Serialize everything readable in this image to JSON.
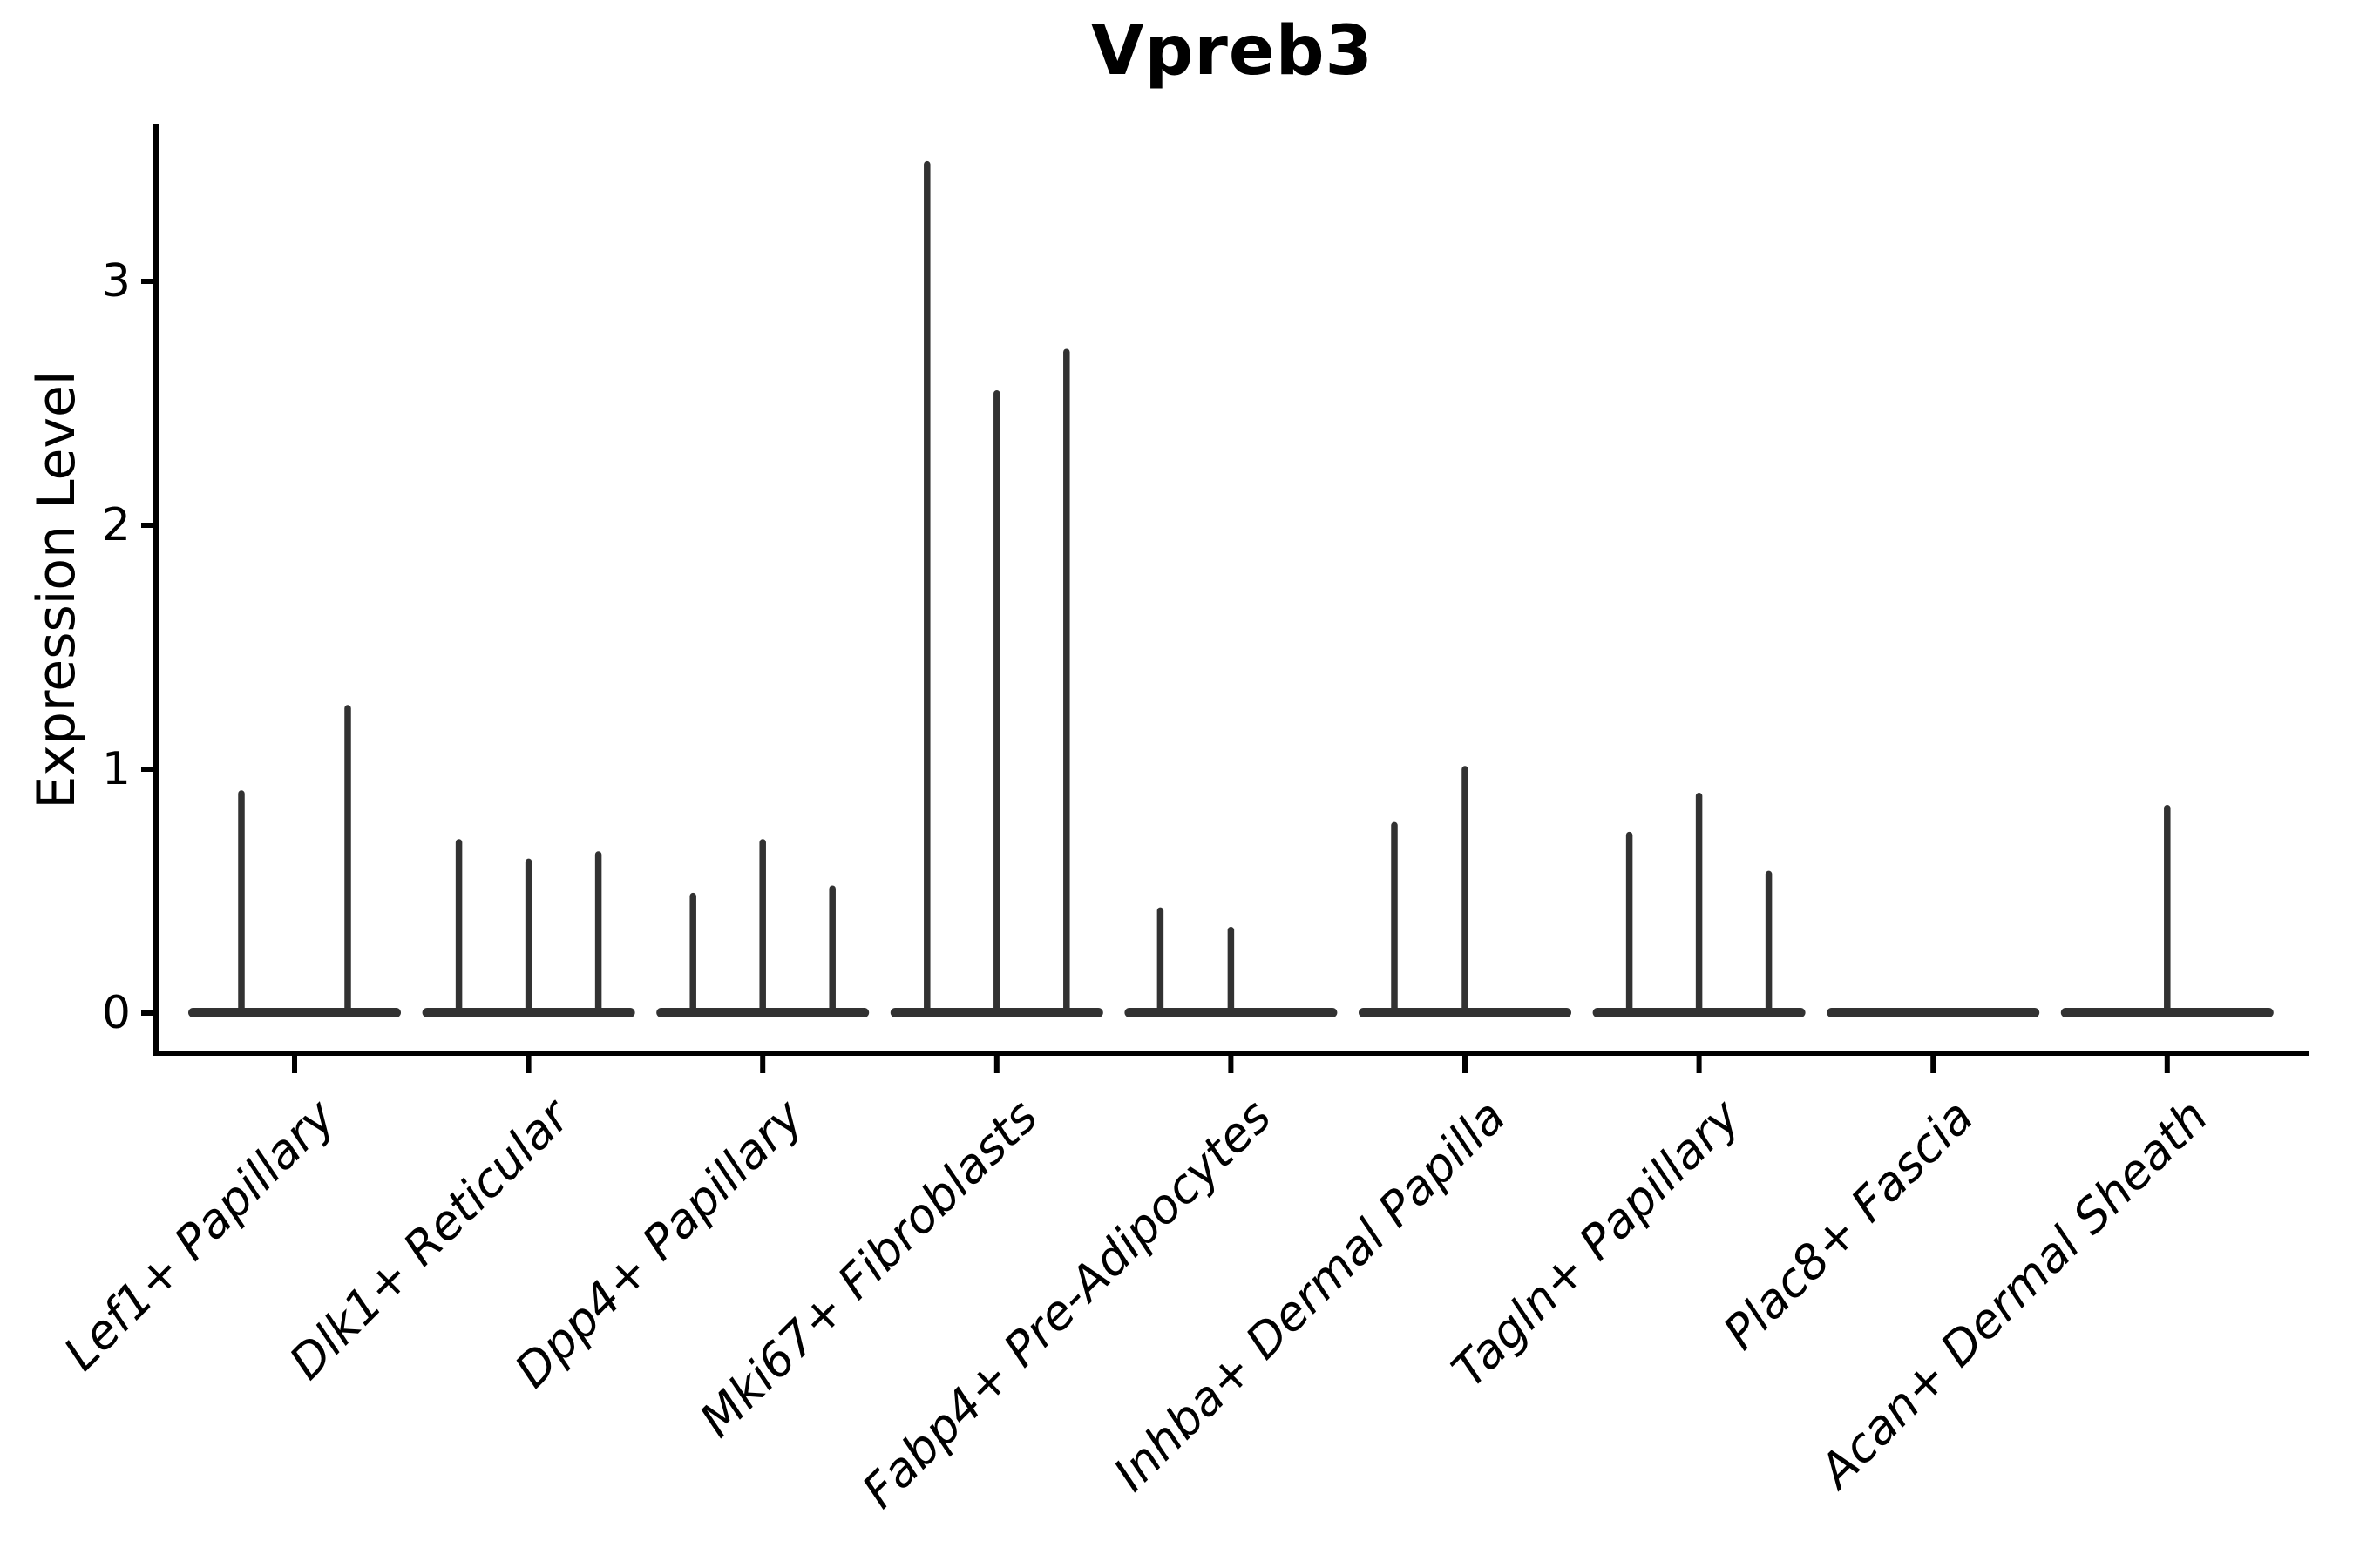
{
  "title": "Vpreb3",
  "y_axis": {
    "label": "Expression Level"
  },
  "chart_data": {
    "type": "violin",
    "title": "Vpreb3",
    "xlabel": "",
    "ylabel": "Expression Level",
    "ylim": [
      0,
      3.65
    ],
    "yticks": [
      0,
      1,
      2,
      3
    ],
    "grid": false,
    "legend": false,
    "categories": [
      "Lef1+ Papillary",
      "Dlk1+ Reticular",
      "Dpp4+ Papillary",
      "Mki67+ Fibroblasts",
      "Fabp4+ Pre-Adipocytes",
      "Inhba+ Dermal Papilla",
      "Tagln+ Papillary",
      "Plac8+ Fascia",
      "Acan+ Dermal Sheath"
    ],
    "groups": [
      {
        "category": "Lef1+ Papillary",
        "needles": [
          {
            "offset": -61,
            "value": 0.9
          },
          {
            "offset": 61,
            "value": 1.25
          }
        ]
      },
      {
        "category": "Dlk1+ Reticular",
        "needles": [
          {
            "offset": -80,
            "value": 0.7
          },
          {
            "offset": 0,
            "value": 0.62
          },
          {
            "offset": 80,
            "value": 0.65
          }
        ]
      },
      {
        "category": "Dpp4+ Papillary",
        "needles": [
          {
            "offset": -80,
            "value": 0.48
          },
          {
            "offset": 0,
            "value": 0.7
          },
          {
            "offset": 80,
            "value": 0.51
          }
        ]
      },
      {
        "category": "Mki67+ Fibroblasts",
        "needles": [
          {
            "offset": -80,
            "value": 3.48
          },
          {
            "offset": 0,
            "value": 2.54
          },
          {
            "offset": 80,
            "value": 2.71
          }
        ]
      },
      {
        "category": "Fabp4+ Pre-Adipocytes",
        "needles": [
          {
            "offset": -81,
            "value": 0.42
          },
          {
            "offset": 0,
            "value": 0.34
          }
        ]
      },
      {
        "category": "Inhba+ Dermal Papilla",
        "needles": [
          {
            "offset": -81,
            "value": 0.77
          },
          {
            "offset": 0,
            "value": 1.0
          }
        ]
      },
      {
        "category": "Tagln+ Papillary",
        "needles": [
          {
            "offset": -80,
            "value": 0.73
          },
          {
            "offset": 0,
            "value": 0.89
          },
          {
            "offset": 80,
            "value": 0.57
          }
        ]
      },
      {
        "category": "Plac8+ Fascia",
        "needles": []
      },
      {
        "category": "Acan+ Dermal Sheath",
        "needles": [
          {
            "offset": 0,
            "value": 0.84
          }
        ]
      }
    ],
    "colors": {
      "violin": "#323232",
      "axis": "#000000",
      "text": "#000000",
      "background": "#ffffff"
    }
  }
}
